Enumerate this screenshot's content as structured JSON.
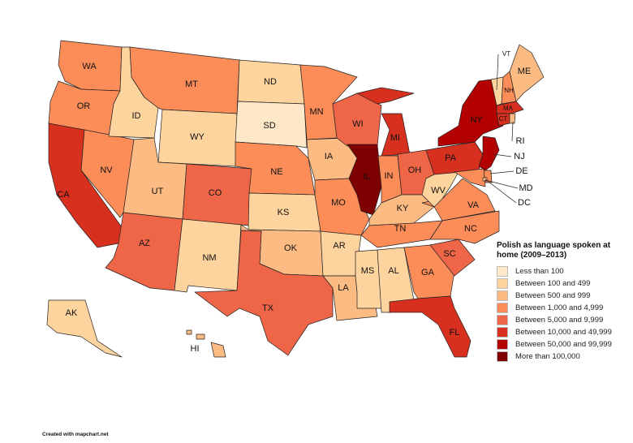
{
  "legend": {
    "title": "Polish as language spoken at home (2009–2013)",
    "items": [
      {
        "label": "Less than 100",
        "color": "#fee8c8"
      },
      {
        "label": "Between 100 and 499",
        "color": "#fdd49e"
      },
      {
        "label": "Between 500 and 999",
        "color": "#fdbb84"
      },
      {
        "label": "Between 1,000 and 4,999",
        "color": "#fc8d59"
      },
      {
        "label": "Between 5,000 and 9,999",
        "color": "#ef6548"
      },
      {
        "label": "Between 10,000 and 49,999",
        "color": "#d7301f"
      },
      {
        "label": "Between 50,000 and 99,999",
        "color": "#b30000"
      },
      {
        "label": "More than 100,000",
        "color": "#7f0000"
      }
    ]
  },
  "states": {
    "WA": 3,
    "OR": 3,
    "CA": 5,
    "NV": 3,
    "ID": 1,
    "MT": 3,
    "WY": 1,
    "UT": 2,
    "AZ": 4,
    "CO": 4,
    "NM": 1,
    "ND": 1,
    "SD": 0,
    "NE": 3,
    "KS": 1,
    "OK": 2,
    "TX": 4,
    "MN": 3,
    "IA": 2,
    "MO": 3,
    "AR": 1,
    "LA": 2,
    "WI": 4,
    "IL": 7,
    "MI": 5,
    "IN": 3,
    "OH": 4,
    "KY": 2,
    "TN": 3,
    "MS": 1,
    "AL": 1,
    "GA": 3,
    "FL": 5,
    "SC": 4,
    "NC": 3,
    "VA": 3,
    "WV": 1,
    "PA": 5,
    "NY": 6,
    "NJ": 6,
    "DE": 3,
    "MD": 3,
    "DC": 2,
    "CT": 5,
    "RI": 2,
    "MA": 5,
    "VT": 1,
    "NH": 3,
    "ME": 2,
    "AK": 1,
    "HI": 2
  },
  "credit": "Created with mapchart.net"
}
